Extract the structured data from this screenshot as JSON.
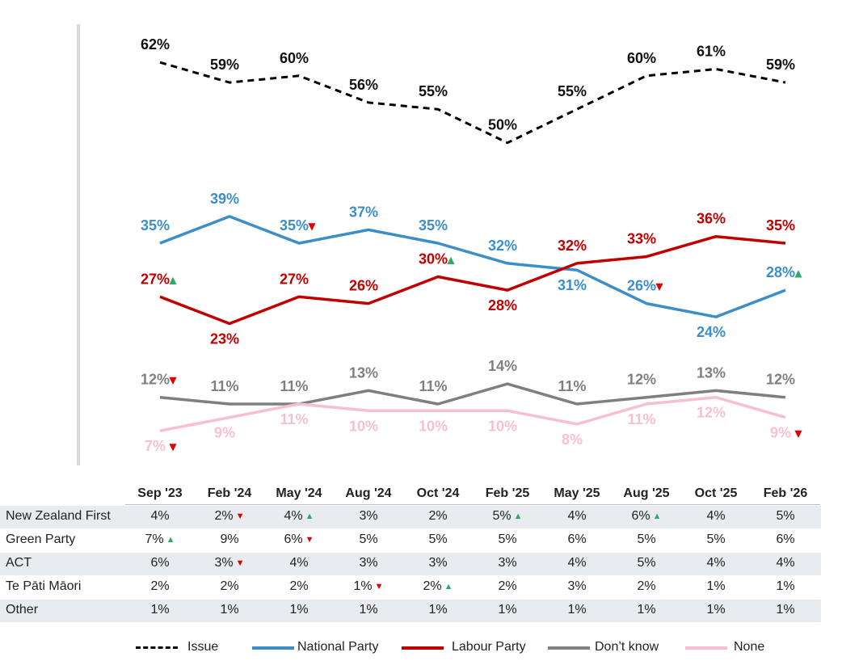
{
  "chart_data": {
    "type": "line",
    "categories": [
      "Sep '23",
      "Feb '24",
      "May '24",
      "Aug '24",
      "Oct '24",
      "Feb '25",
      "May '25",
      "Aug '25",
      "Oct '25",
      "Feb '26"
    ],
    "ylim": [
      0,
      70
    ],
    "series": [
      {
        "name": "Issue",
        "color": "#000000",
        "dash": true,
        "values": [
          62,
          59,
          60,
          56,
          55,
          50,
          55,
          60,
          61,
          59
        ],
        "labels": [
          "62%",
          "59%",
          "60%",
          "56%",
          "55%",
          "50%",
          "55%",
          "60%",
          "61%",
          "59%"
        ],
        "markers": [
          "",
          "",
          "",
          "",
          "",
          "",
          "",
          "",
          "",
          ""
        ]
      },
      {
        "name": "National Party",
        "color": "#3b8ec8",
        "dash": false,
        "values": [
          35,
          39,
          35,
          37,
          35,
          32,
          31,
          26,
          24,
          28
        ],
        "labels": [
          "35%",
          "39%",
          "35%",
          "37%",
          "35%",
          "32%",
          "31%",
          "26%",
          "24%",
          "28%"
        ],
        "markers": [
          "",
          "",
          "down",
          "",
          "",
          "",
          "",
          "down",
          "",
          "up"
        ]
      },
      {
        "name": "Labour Party",
        "color": "#c00000",
        "dash": false,
        "values": [
          27,
          23,
          27,
          26,
          30,
          28,
          32,
          33,
          36,
          35
        ],
        "labels": [
          "27%",
          "23%",
          "27%",
          "26%",
          "30%",
          "28%",
          "32%",
          "33%",
          "36%",
          "35%"
        ],
        "markers": [
          "up",
          "",
          "",
          "",
          "up",
          "",
          "",
          "",
          "",
          ""
        ]
      },
      {
        "name": "Don’t know",
        "color": "#7f7f7f",
        "dash": false,
        "values": [
          12,
          11,
          11,
          13,
          11,
          14,
          11,
          12,
          13,
          12
        ],
        "labels": [
          "12%",
          "11%",
          "11%",
          "13%",
          "11%",
          "14%",
          "11%",
          "12%",
          "13%",
          "12%"
        ],
        "markers": [
          "down",
          "",
          "",
          "",
          "",
          "",
          "",
          "",
          "",
          ""
        ]
      },
      {
        "name": "None",
        "color": "#f7bfd4",
        "dash": false,
        "values": [
          7,
          9,
          11,
          10,
          10,
          10,
          8,
          11,
          12,
          9
        ],
        "labels": [
          "7%",
          "9%",
          "11%",
          "10%",
          "10%",
          "10%",
          "8%",
          "11%",
          "12%",
          "9%"
        ],
        "markers": [
          "down",
          "",
          "",
          "",
          "",
          "",
          "",
          "",
          "",
          "down"
        ]
      }
    ]
  },
  "table": {
    "rows": [
      {
        "name": "New Zealand First",
        "values": [
          "4%",
          "2%",
          "4%",
          "3%",
          "2%",
          "5%",
          "4%",
          "6%",
          "4%",
          "5%"
        ],
        "markers": [
          "",
          "down",
          "up",
          "",
          "",
          "up",
          "",
          "up",
          "",
          ""
        ]
      },
      {
        "name": "Green Party",
        "values": [
          "7%",
          "9%",
          "6%",
          "5%",
          "5%",
          "5%",
          "6%",
          "5%",
          "5%",
          "6%"
        ],
        "markers": [
          "up",
          "",
          "down",
          "",
          "",
          "",
          "",
          "",
          "",
          ""
        ]
      },
      {
        "name": "ACT",
        "values": [
          "6%",
          "3%",
          "4%",
          "3%",
          "3%",
          "3%",
          "4%",
          "5%",
          "4%",
          "4%"
        ],
        "markers": [
          "",
          "down",
          "",
          "",
          "",
          "",
          "",
          "",
          "",
          ""
        ]
      },
      {
        "name": "Te Pāti Māori",
        "values": [
          "2%",
          "2%",
          "2%",
          "1%",
          "2%",
          "2%",
          "3%",
          "2%",
          "1%",
          "1%"
        ],
        "markers": [
          "",
          "",
          "",
          "down",
          "up",
          "",
          "",
          "",
          "",
          ""
        ]
      },
      {
        "name": "Other",
        "values": [
          "1%",
          "1%",
          "1%",
          "1%",
          "1%",
          "1%",
          "1%",
          "1%",
          "1%",
          "1%"
        ],
        "markers": [
          "",
          "",
          "",
          "",
          "",
          "",
          "",
          "",
          "",
          ""
        ]
      }
    ]
  },
  "colors": {
    "up": "#2eab6a",
    "down": "#e00000"
  },
  "icons": {
    "up": "▲",
    "down": "▼"
  }
}
